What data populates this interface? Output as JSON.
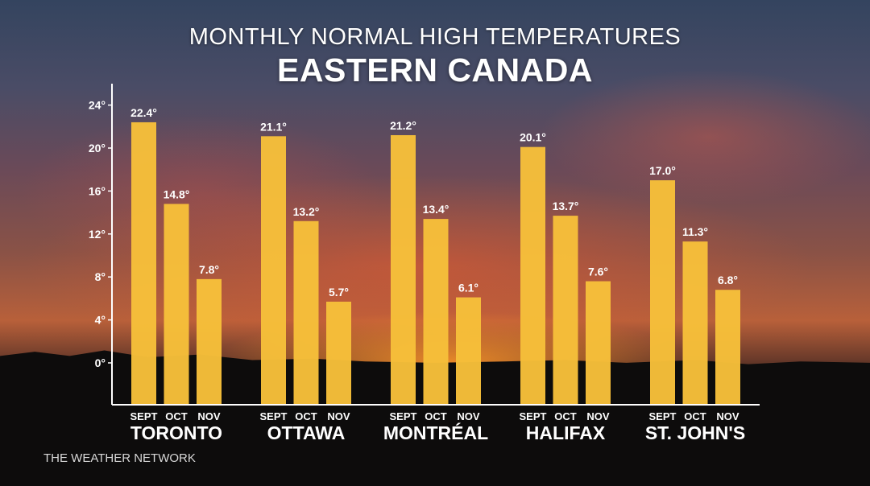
{
  "header": {
    "title": "MONTHLY NORMAL HIGH TEMPERATURES",
    "subtitle": "EASTERN CANADA"
  },
  "footer": {
    "brand": "THE WEATHER NETWORK"
  },
  "colors": {
    "bar": "#f6bf3a",
    "axis": "#ffffff",
    "text": "#ffffff"
  },
  "chart_data": {
    "type": "bar",
    "title": "MONTHLY NORMAL HIGH TEMPERATURES",
    "subtitle": "EASTERN CANADA",
    "xlabel": "",
    "ylabel": "",
    "ylim": [
      -4,
      26
    ],
    "yticks": [
      0,
      4,
      8,
      12,
      16,
      20,
      24
    ],
    "ytick_labels": [
      "0°",
      "4°",
      "8°",
      "12°",
      "16°",
      "20°",
      "24°"
    ],
    "months": [
      "SEPT",
      "OCT",
      "NOV"
    ],
    "categories": [
      "TORONTO",
      "OTTAWA",
      "MONTRÉAL",
      "HALIFAX",
      "ST. JOHN'S"
    ],
    "groups": [
      {
        "city": "TORONTO",
        "values": [
          22.4,
          14.8,
          7.8
        ],
        "labels": [
          "22.4°",
          "14.8°",
          "7.8°"
        ]
      },
      {
        "city": "OTTAWA",
        "values": [
          21.1,
          13.2,
          5.7
        ],
        "labels": [
          "21.1°",
          "13.2°",
          "5.7°"
        ]
      },
      {
        "city": "MONTRÉAL",
        "values": [
          21.2,
          13.4,
          6.1
        ],
        "labels": [
          "21.2°",
          "13.4°",
          "6.1°"
        ]
      },
      {
        "city": "HALIFAX",
        "values": [
          20.1,
          13.7,
          7.6
        ],
        "labels": [
          "20.1°",
          "13.7°",
          "7.6°"
        ]
      },
      {
        "city": "ST. JOHN'S",
        "values": [
          17.0,
          11.3,
          6.8
        ],
        "labels": [
          "17.0°",
          "11.3°",
          "6.8°"
        ]
      }
    ],
    "grid": false,
    "legend": "none"
  }
}
